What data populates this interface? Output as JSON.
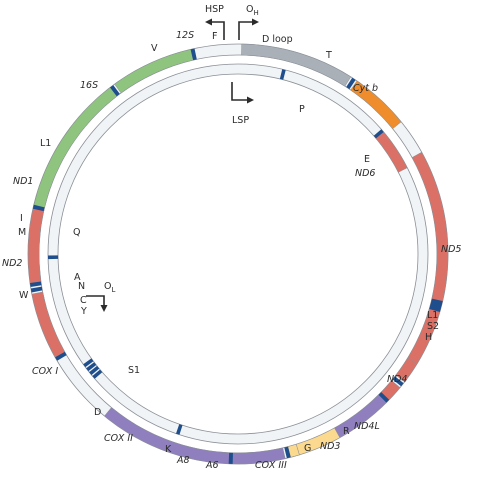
{
  "title": "",
  "colors": {
    "ring_fill": "#f1f4f6",
    "ring_stroke": "#8a8f96",
    "trna": "#1f4e8c",
    "arrow": "#2b2b2b",
    "rRNA": "#8fc47f",
    "control": "#a9b0b7",
    "cytb": "#ef8d2c",
    "nd": "#db7166",
    "cox": "#8f7fbe",
    "atp": "#fbd98e"
  },
  "outer_genes": [
    {
      "name": "D loop",
      "start": 2,
      "end": 65,
      "kind": "control"
    },
    {
      "name": "Cyt b",
      "start": 69,
      "end": 102,
      "kind": "cytb"
    },
    {
      "name": "ND5",
      "start": 122,
      "end": 211,
      "kind": "nd"
    },
    {
      "name": "ND4",
      "start": 211,
      "end": 243,
      "kind": "nd"
    },
    {
      "name": "ND4L",
      "start": 243,
      "end": 255,
      "kind": "nd"
    },
    {
      "name": "ND3",
      "start": 259,
      "end": 269,
      "kind": "nd"
    },
    {
      "name": "COX III",
      "start": 269,
      "end": 302,
      "kind": "cox"
    },
    {
      "name": "A6",
      "start": 302,
      "end": 326,
      "kind": "atp"
    },
    {
      "name": "A8",
      "start": 326,
      "end": 331,
      "kind": "atp"
    },
    {
      "name": "COX II",
      "start": 334,
      "end": 364,
      "kind": "cox"
    },
    {
      "name": "COX I",
      "start": 364,
      "end": 439,
      "kind": "cox"
    },
    {
      "name": "ND2",
      "start": 481,
      "end": 518,
      "kind": "nd"
    },
    {
      "name": "ND1",
      "start": 524,
      "end": 566,
      "kind": "nd"
    },
    {
      "name": "16S",
      "start": 566,
      "end": 646,
      "kind": "rRNA"
    },
    {
      "name": "12S",
      "start": 648,
      "end": 695,
      "kind": "rRNA"
    }
  ],
  "inner_genes": [
    {
      "name": "ND6",
      "start": 100,
      "end": 126,
      "kind": "nd"
    }
  ],
  "outer_trnas": [
    {
      "name": "F",
      "pos": 695
    },
    {
      "name": "V",
      "pos": 646
    },
    {
      "name": "L1",
      "pos": 566
    },
    {
      "name": "I",
      "pos": 520
    },
    {
      "name": "M",
      "pos": 523
    },
    {
      "name": "W",
      "pos": 480
    },
    {
      "name": "D",
      "pos": 364
    },
    {
      "name": "K",
      "pos": 332
    },
    {
      "name": "G",
      "pos": 269
    },
    {
      "name": "R",
      "pos": 257
    },
    {
      "name": "H",
      "pos": 211
    },
    {
      "name": "S2",
      "pos": 209
    },
    {
      "name": "L1",
      "pos": 207
    },
    {
      "name": "T",
      "pos": 67
    }
  ],
  "inner_trnas": [
    {
      "name": "P",
      "pos": 28
    },
    {
      "name": "E",
      "pos": 99
    },
    {
      "name": "Q",
      "pos": 538
    },
    {
      "name": "A",
      "pos": 468
    },
    {
      "name": "N",
      "pos": 465
    },
    {
      "name": "C",
      "pos": 462
    },
    {
      "name": "Y",
      "pos": 459
    },
    {
      "name": "S1",
      "pos": 397
    }
  ],
  "promoters": {
    "hsp": "HSP",
    "lsp": "LSP",
    "oh_main": "O",
    "oh_sub": "H",
    "ol_main": "O",
    "ol_sub": "L"
  }
}
